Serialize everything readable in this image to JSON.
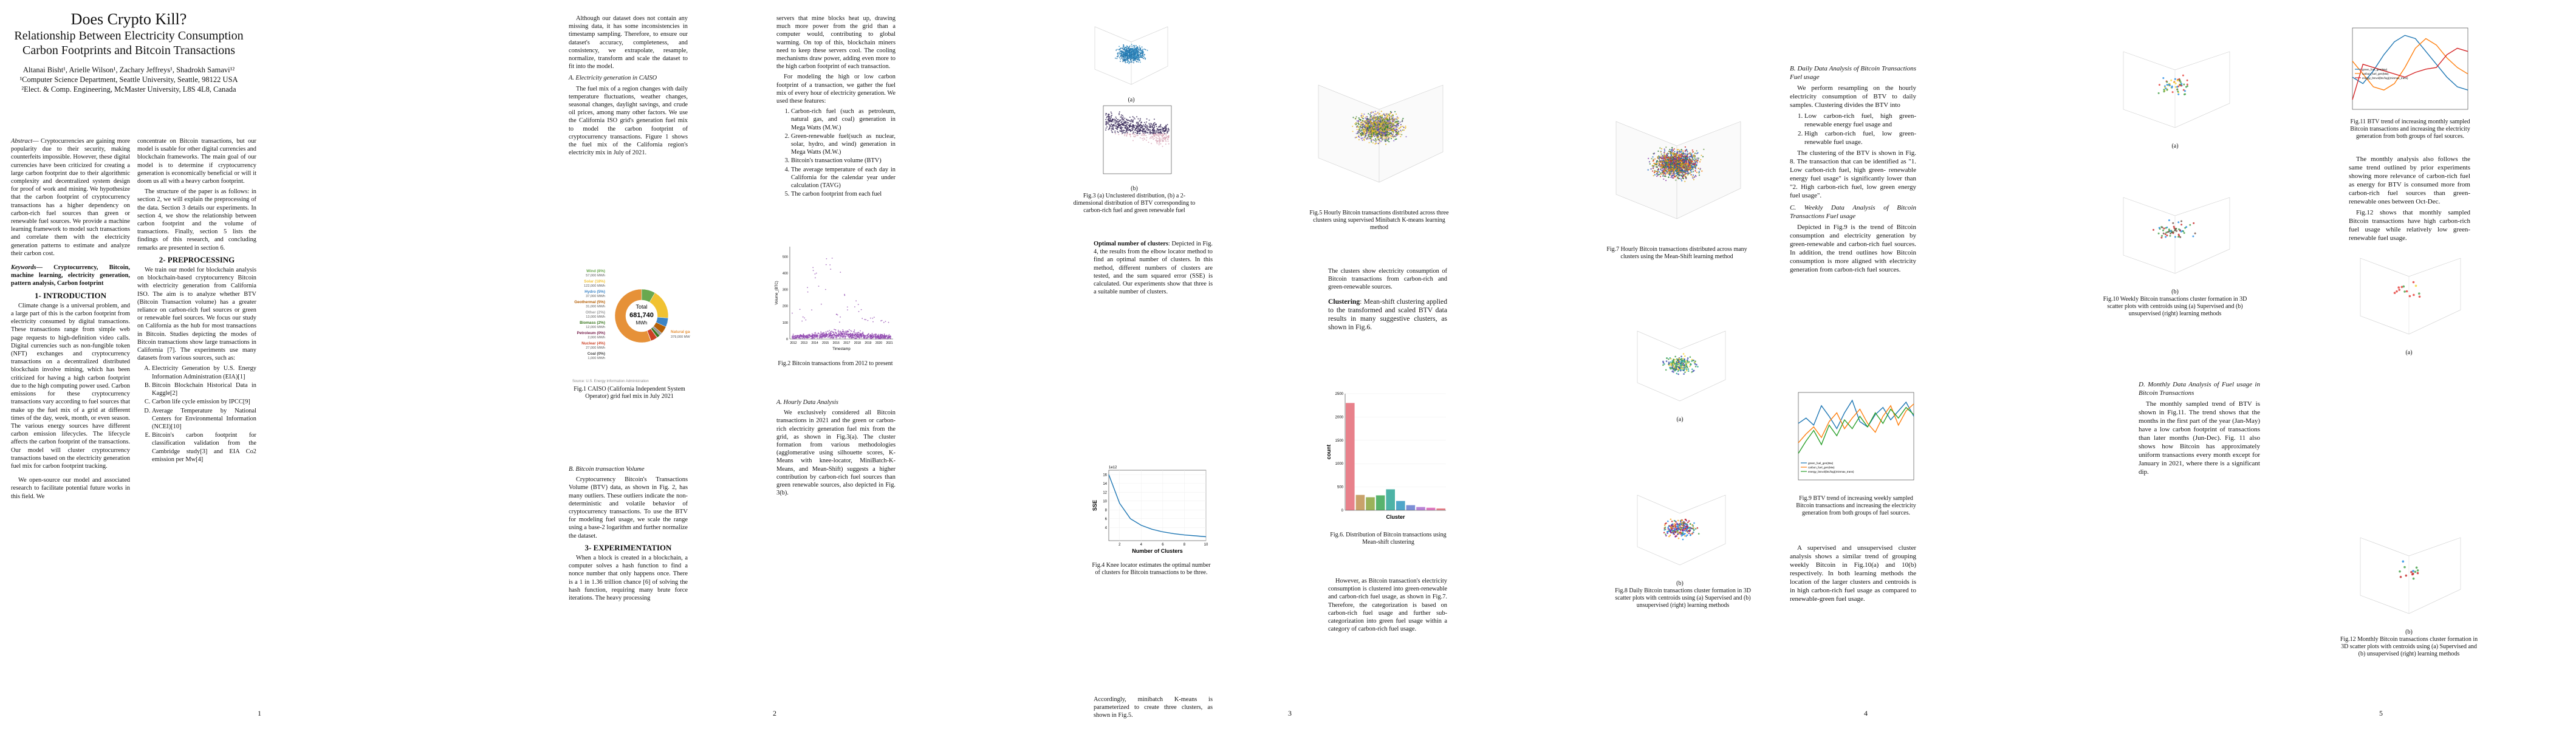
{
  "page1": {
    "title": "Does Crypto Kill?",
    "subtitle": "Relationship Between Electricity Consumption Carbon Footprints and Bitcoin Transactions",
    "authors": "Altanai Bisht¹, Arielle Wilson¹, Zachary Jeffreys¹, Shadrokh Samavi¹²",
    "aff1": "¹Computer Science Department, Seattle University, Seattle, 98122 USA",
    "aff2": "²Elect. & Comp. Engineering, McMaster University, L8S 4L8, Canada",
    "abstract_label": "Abstract",
    "abstract": "— Cryptocurrencies are gaining more popularity due to their security, making counterfeits impossible. However, these digital currencies have been criticized for creating a large carbon footprint due to their algorithmic complexity and decentralized system design for proof of work and mining. We hypothesize that the carbon footprint of cryptocurrency transactions has a higher dependency on carbon-rich fuel sources than green or renewable fuel sources. We provide a machine learning framework to model such transactions and correlate them with the electricity generation patterns to estimate and analyze their carbon cost.",
    "keywords_label": "Keywords",
    "keywords": "— Cryptocurrency, Bitcoin, machine learning, electricity generation, pattern analysis, Carbon footprint",
    "sec1": "1- INTRODUCTION",
    "intro1": "Climate change is a universal problem, and a large part of this is the carbon footprint from electricity consumed by digital transactions. These transactions range from simple web page requests to high-definition video calls. Digital currencies such as non-fungible token (NFT) exchanges and cryptocurrency transactions on a decentralized distributed blockchain involve mining, which has been criticized for having a high carbon footprint due to the high computing power used. Carbon emissions for these cryptocurrency transactions vary according to fuel sources that make up the fuel mix of a grid at different times of the day, week, month, or even season. The various energy sources have different carbon emission lifecycles. The lifecycle affects the carbon footprint of the transactions. Our model will cluster cryptocurrency transactions based on the electricity generation fuel mix for carbon footprint tracking.",
    "intro2": "We open-source our model and associated research to facilitate potential future works in this field. We",
    "col2a": "concentrate on Bitcoin transactions, but our model is usable for other digital currencies and blockchain frameworks. The main goal of our model is to determine if cryptocurrency generation is economically beneficial or will it doom us all with a heavy carbon footprint.",
    "col2b": "The structure of the paper is as follows: in section 2, we will explain the preprocessing of the data. Section 3 details our experiments. In section 4, we show the relationship between carbon footprint and the volume of transactions. Finally, section 5 lists the findings of this research, and concluding remarks are presented in section 6.",
    "sec2": "2- PREPROCESSING",
    "pre1": "We train our model for blockchain analysis on blockchain-based cryptocurrency Bitcoin with electricity generation from California ISO. The aim is to analyze whether BTV (Bitcoin Transaction volume) has a greater reliance on carbon-rich fuel sources or green or renewable fuel sources. We focus our study on California as the hub for most transactions in Bitcoin. Studies depicting the modes of Bitcoin transactions show large transactions in California [7]. The experiments use many datasets from various sources, such as:",
    "sources": [
      "Electricity Generation by U.S. Energy Information Administration (EIA)[1]",
      "Bitcoin Blockchain Historical Data in Kaggle[2]",
      "Carbon life cycle emission by IPCC[9]",
      "Average Temperature by National Centers for Environmental Information (NCEI)[10]",
      "Bitcoin's carbon footprint for classification validation from the Cambridge study[3] and EIA Co2 emission per Mw[4]"
    ],
    "page_num": "1"
  },
  "page2": {
    "p1": "Although our dataset does not contain any missing data, it has some inconsistencies in timestamp sampling. Therefore, to ensure our dataset's accuracy, completeness, and consistency, we extrapolate, resample, normalize, transform and scale the dataset to fit into the model.",
    "subA": "A. Electricity generation in CAISO",
    "p2": "The fuel mix of a region changes with daily temperature fluctuations, weather changes, seasonal changes, daylight savings, and crude oil prices, among many other factors. We use the California ISO grid's generation fuel mix to model the carbon footprint of cryptocurrency transactions. Figure 1 shows the fuel mix of the California region's electricity mix in July of 2021.",
    "fig1_caption": "Fig.1 CAISO (California Independent System Operator) grid fuel mix in July 2021",
    "donut_center_label": "Total",
    "donut_total": "681,740",
    "donut_unit": "MWh",
    "donut_source": "Source: U.S. Energy Information Administration",
    "subB": "B. Bitcoin transaction Volume",
    "p3": "Cryptocurrency Bitcoin's Transactions Volume (BTV) data, as shown in Fig. 2, has many outliers. These outliers indicate the non-deterministic and volatile behavior of cryptocurrency transactions. To use the BTV for modeling fuel usage, we scale the range using a base-2 logarithm and further normalize the dataset.",
    "sec3": "3- EXPERIMENTATION",
    "p4": "When a block is created in a blockchain, a computer solves a hash function to find a nonce number that only happens once. There is a 1 in 1.36 trillion chance [6] of solving the hash function, requiring many brute force iterations. The heavy processing",
    "page_num": "2"
  },
  "page3": {
    "p1": "servers that mine blocks heat up, drawing much more power from the grid than a computer would, contributing to global warming. On top of this, blockchain miners need to keep these servers cool. The cooling mechanisms draw power, adding even more to the high carbon footprint of each transaction.",
    "p2": "For modeling the high or low carbon footprint of a transaction, we gather the fuel mix of every hour of electricity generation. We used these features:",
    "features": [
      "Carbon-rich fuel (such as petroleum, natural gas, and coal) generation in Mega Watts (M.W.)",
      "Green-renewable fuel(such as nuclear, solar, hydro, and wind) generation in Mega Watts (M.W.)",
      "Bitcoin's transaction volume (BTV)",
      "The average temperature of each day in California for the calendar year under calculation (TAVG)",
      "The carbon footprint from each fuel"
    ],
    "fig2_caption": "Fig.2 Bitcoin transactions from 2012 to present",
    "subA": "A. Hourly Data Analysis",
    "p3": "We exclusively considered all Bitcoin transactions in 2021 and the green or carbon-rich electricity generation fuel mix from the grid, as shown in Fig.3(a). The cluster formation from various methodologies (agglomerative using silhouette scores, K-Means with knee-locator, MiniBatch-K-Means, and Mean-Shift) suggests a higher contribution by carbon-rich fuel sources than green renewable sources, also depicted in Fig. 3(b).",
    "fig3a_label": "(a)",
    "fig3b_label": "(b)",
    "fig3_caption": "Fig.3 (a) Unclustered distribution, (b) a 2-dimensional distribution of BTV corresponding to carbon-rich fuel and green renewable fuel",
    "p4": "The clusters show electricity consumption of Bitcoin transactions from carbon-rich and green-renewable sources.",
    "p5_bold": "Optimal number of clusters",
    "p5": ": Depicted in Fig. 4, the results from the elbow locator method to find an optimal number of clusters. In this method, different numbers of clusters are tested, and the sum squared error (SSE) is calculated. Our experiments show that three is a suitable number of clusters.",
    "fig4_caption": "Fig.4 Knee locator estimates the optimal number of clusters for Bitcoin transactions to be three.",
    "p6": "Accordingly, minibatch K-means is parameterized to create three clusters, as shown in Fig.5.",
    "fig5_caption": "Fig.5 Hourly Bitcoin transactions distributed across three clusters using supervised Minibatch K-means learning method",
    "p7_bold": "Clustering",
    "p7": ": Mean-shift clustering applied to the transformed and scaled BTV data results in many suggestive clusters, as shown in Fig.6.",
    "fig6_caption": "Fig.6. Distribution of Bitcoin transactions using Mean-shift clustering",
    "p8": "However, as Bitcoin transaction's electricity consumption is clustered into green-renewable and carbon-rich fuel usage, as shown in Fig.7. Therefore, the categorization is based on carbon-rich fuel usage and further sub-categorization into green fuel usage within a category of carbon-rich fuel usage.",
    "page_num": "3"
  },
  "page4": {
    "fig7_caption": "Fig.7 Hourly Bitcoin transactions distributed across many clusters using the Mean-Shift learning method",
    "fig8a_label": "(a)",
    "fig8b_label": "(b)",
    "fig8_caption": "Fig.8 Daily Bitcoin transactions cluster formation in 3D scatter plots with centroids using (a) Supervised and (b) unsupervised (right) learning methods",
    "subB": "B. Daily Data Analysis of Bitcoin Transactions Fuel usage",
    "p1": "We perform resampling on the hourly electricity consumption of BTV to daily samples. Clustering divides the BTV into",
    "items": [
      "Low carbon-rich fuel, high green- renewable energy fuel usage and",
      "High carbon-rich fuel, low green-renewable fuel usage."
    ],
    "p2": "The clustering of the BTV is shown in Fig. 8. The transaction that can be identified as \"1. Low carbon-rich fuel, high green- renewable energy fuel usage\" is significantly lower than \"2. High carbon-rich fuel, low green energy fuel usage\".",
    "subC": "C. Weekly Data Analysis of Bitcoin Transactions Fuel usage",
    "p3": "Depicted in Fig.9 is the trend of Bitcoin consumption and electricity generation by green-renewable and carbon-rich fuel sources. In addition, the trend outlines how Bitcoin consumption is more aligned with electricity generation from carbon-rich fuel sources.",
    "fig9_caption": "Fig.9 BTV trend of increasing weekly sampled Bitcoin transactions and increasing the electricity generation from both groups of fuel sources.",
    "p4": "A supervised and unsupervised cluster analysis shows a similar trend of grouping weekly Bitcoin in Fig.10(a) and 10(b) respectively. In both learning methods the location of the larger clusters and centroids is in high carbon-rich fuel usage as compared to renewable-green fuel usage.",
    "page_num": "4"
  },
  "page5": {
    "fig10a_label": "(a)",
    "fig10b_label": "(b)",
    "fig10_caption": "Fig.10 Weekly Bitcoin transactions cluster formation in 3D scatter plots with centroids using (a) Supervised and (b) unsupervised (right) learning methods",
    "fig11_caption": "Fig.11 BTV trend of increasing monthly sampled Bitcoin transactions and increasing the electricity generation from both groups of fuel sources.",
    "p1": "The monthly analysis also follows the same trend outlined by prior experiments showing more relevance of carbon-rich fuel as energy for BTV is consumed more from carbon-rich fuel sources than green-renewable ones between Oct-Dec.",
    "p2": "Fig.12 shows that monthly sampled Bitcoin transactions have high carbon-rich fuel usage while relatively low green-renewable fuel usage.",
    "subD": "D. Monthly Data Analysis of Fuel usage in Bitcoin Transactions",
    "p3": "The monthly sampled trend of BTV is shown in Fig.11. The trend shows that the months in the first part of the year (Jan-May) have a low carbon footprint of transactions than later months (Jun-Dec). Fig. 11 also shows how Bitcoin has approximately uniform transactions every month except for January in 2021, where there is a significant dip.",
    "fig12a_label": "(a)",
    "fig12b_label": "(b)",
    "fig12_caption": "Fig.12 Monthly Bitcoin transactions cluster formation in 3D scatter plots with centroids using (a) Supervised and (b) unsupervised (right) learning methods",
    "page_num": "5"
  },
  "chart_data": [
    {
      "id": "fig1",
      "type": "pie",
      "title": "",
      "labels": [
        "Wind (8%)",
        "Solar (18%)",
        "Hydro (5%)",
        "Geothermal (5%)",
        "Other (2%)",
        "Biomass (2%)",
        "Petroleum (0%)",
        "Nuclear (4%)",
        "Coal (0%)",
        "Natural gas (56%)"
      ],
      "label_details": [
        "57,000 MWh",
        "122,000 MWh",
        "37,000 MWh",
        "31,000 MWh",
        "13,000 MWh",
        "12,000 MWh",
        "2,000 MWh",
        "27,000 MWh",
        "1,000 MWh",
        "379,000 MWh"
      ],
      "values": [
        57000,
        122000,
        37000,
        31000,
        13000,
        12000,
        2000,
        27000,
        1000,
        379000
      ],
      "colors": [
        "#6aa84f",
        "#f1c232",
        "#3d85c6",
        "#b45f06",
        "#999999",
        "#38761d",
        "#741b47",
        "#cc4125",
        "#444444",
        "#e69138"
      ]
    },
    {
      "id": "fig2",
      "type": "scatter",
      "xlabel": "Timestamp",
      "ylabel": "Volume_(BTC)",
      "x_ticks": [
        "2012",
        "2013",
        "2014",
        "2015",
        "2016",
        "2017",
        "2018",
        "2019",
        "2020",
        "2021"
      ],
      "y_ticks": [
        0,
        100,
        200,
        300,
        400,
        500
      ],
      "ylim": [
        0,
        560
      ],
      "color": "#8e44ad"
    },
    {
      "id": "fig4",
      "type": "line",
      "xlabel": "Number of Clusters",
      "ylabel": "SSE",
      "x": [
        1,
        2,
        3,
        4,
        5,
        6,
        7,
        8,
        9,
        10
      ],
      "y": [
        16,
        9.5,
        6,
        4.5,
        3.6,
        3,
        2.6,
        2.3,
        2.1,
        1.9
      ],
      "y_ticks": [
        4,
        6,
        8,
        10,
        12,
        14,
        16
      ],
      "x_ticks": [
        2,
        4,
        6,
        8,
        10
      ],
      "annotation": "1e12",
      "color": "#1f77b4"
    },
    {
      "id": "fig6",
      "type": "bar",
      "xlabel": "Cluster",
      "ylabel": "count",
      "categories": [
        "0",
        "1",
        "2",
        "3",
        "4",
        "5",
        "6",
        "7",
        "8",
        "9"
      ],
      "values": [
        2300,
        330,
        280,
        320,
        450,
        200,
        110,
        70,
        55,
        40
      ],
      "ylim": [
        0,
        2500
      ],
      "y_ticks": [
        0,
        500,
        1000,
        1500,
        2000,
        2500
      ],
      "colors": [
        "#e8818b",
        "#c9a26b",
        "#9bb25a",
        "#58b36d",
        "#4db3a6",
        "#4fa6c9",
        "#7c8fd6",
        "#b983d6",
        "#e079c0",
        "#e8818b"
      ]
    },
    {
      "id": "fig9",
      "type": "line",
      "series": [
        {
          "name": "green_fuel_gen(Mw)",
          "color": "#1f77b4",
          "values": [
            3.2,
            3.5,
            3.1,
            4.2,
            3.6,
            2.9,
            3.8,
            4.5,
            3.3,
            3.0,
            3.7,
            4.1,
            3.4,
            3.9,
            4.4,
            3.6
          ]
        },
        {
          "name": "carbon_fuel_gen(Mw)",
          "color": "#ff7f0e",
          "values": [
            2.1,
            2.6,
            3.0,
            2.4,
            3.3,
            3.8,
            2.9,
            3.5,
            4.0,
            3.2,
            2.7,
            3.6,
            4.2,
            3.1,
            3.9,
            4.3
          ]
        },
        {
          "name": "energy_btcvol(btc/log)(minmax_trans)",
          "color": "#2ca02c",
          "values": [
            1.5,
            2.2,
            2.8,
            2.0,
            3.1,
            2.5,
            3.4,
            2.9,
            3.6,
            3.0,
            3.8,
            3.2,
            4.0,
            3.5,
            4.1,
            3.7
          ]
        }
      ]
    },
    {
      "id": "fig11",
      "type": "line",
      "series": [
        {
          "name": "green_fuel_gen(Mw)",
          "color": "#1f77b4",
          "values": [
            2.0,
            1.6,
            2.4,
            3.4,
            4.2,
            4.6,
            4.4,
            3.6,
            2.8,
            2.0,
            1.4,
            1.2
          ]
        },
        {
          "name": "carbon_fuel_gen(Mw)",
          "color": "#ff7f0e",
          "values": [
            3.0,
            2.2,
            1.4,
            1.2,
            1.6,
            2.6,
            3.8,
            4.4,
            4.0,
            3.2,
            2.6,
            2.2
          ]
        },
        {
          "name": "energy_btcvol(btc/log)(minmax_trans)",
          "color": "#d62728",
          "values": [
            0.6,
            2.8,
            2.6,
            2.4,
            2.2,
            2.0,
            2.3,
            2.5,
            2.6,
            3.4,
            3.8,
            3.6
          ]
        }
      ]
    }
  ]
}
